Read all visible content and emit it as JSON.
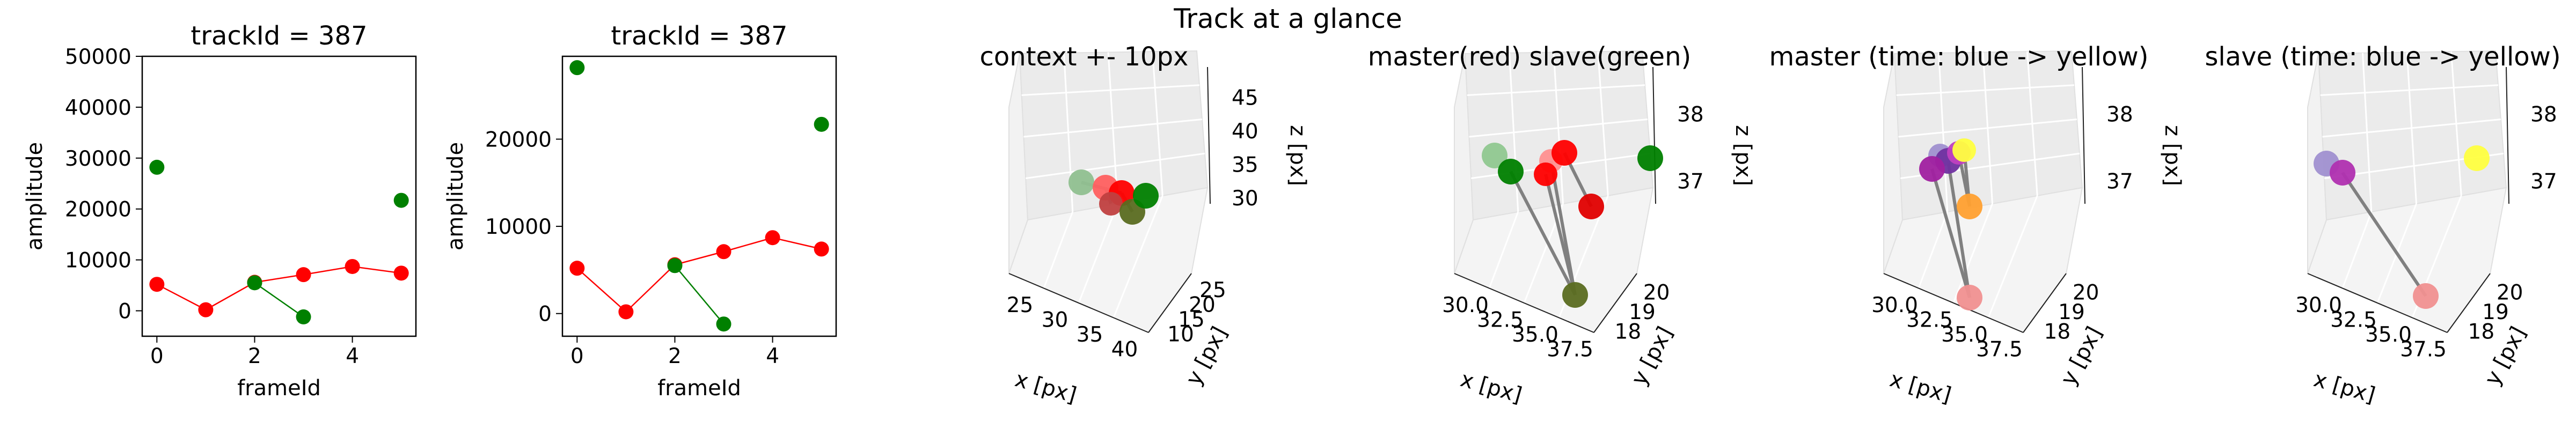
{
  "figure": {
    "suptitle": "Track at a glance"
  },
  "colors": {
    "master": "#ff0000",
    "slave": "#008000",
    "link": "#808080",
    "pane": "#f2f2f2",
    "grid": "#dddddd"
  },
  "chart_data": [
    {
      "type": "line",
      "title": "trackId = 387",
      "xlabel": "frameId",
      "ylabel": "amplitude",
      "xlim": [
        -0.3,
        5.3
      ],
      "ylim": [
        -5000,
        50000
      ],
      "xticks": [
        "0",
        "2",
        "4"
      ],
      "yticks": [
        "0",
        "10000",
        "20000",
        "30000",
        "40000",
        "50000"
      ],
      "series": [
        {
          "color": "#ff0000",
          "x": [
            0,
            1,
            2,
            3,
            4,
            5
          ],
          "y": [
            5200,
            200,
            5600,
            7100,
            8700,
            7400
          ]
        },
        {
          "color": "#008000",
          "x": [
            0,
            2,
            3,
            5
          ],
          "y": [
            28200,
            5500,
            -1200,
            21700
          ],
          "connect": [
            [
              1,
              2
            ]
          ]
        }
      ]
    },
    {
      "type": "line",
      "title": "trackId = 387",
      "xlabel": "frameId",
      "ylabel": "amplitude",
      "xlim": [
        -0.3,
        5.3
      ],
      "ylim": [
        -2600,
        29500
      ],
      "xticks": [
        "0",
        "2",
        "4"
      ],
      "yticks": [
        "0",
        "10000",
        "20000"
      ],
      "series": [
        {
          "color": "#ff0000",
          "x": [
            0,
            1,
            2,
            3,
            4,
            5
          ],
          "y": [
            5200,
            200,
            5600,
            7100,
            8700,
            7400
          ]
        },
        {
          "color": "#008000",
          "x": [
            0,
            2,
            3,
            5
          ],
          "y": [
            28200,
            5500,
            -1200,
            21700
          ],
          "connect": [
            [
              1,
              2
            ]
          ]
        }
      ]
    },
    {
      "type": "scatter3d",
      "title": "context +- 10px",
      "xlabel": "x [px]",
      "ylabel": "y [px]",
      "zlabel": "z [px]",
      "xticks": [
        "25",
        "30",
        "35",
        "40"
      ],
      "yticks": [
        "10",
        "15",
        "20",
        "25"
      ],
      "zticks": [
        "30",
        "35",
        "40",
        "45"
      ]
    },
    {
      "type": "scatter3d",
      "title": "master(red) slave(green)",
      "xlabel": "x [px]",
      "ylabel": "y [px]",
      "zlabel": "z [px]",
      "xticks": [
        "30.0",
        "32.5",
        "35.0",
        "37.5"
      ],
      "yticks": [
        "18",
        "19",
        "20"
      ],
      "zticks": [
        "37",
        "38"
      ]
    },
    {
      "type": "scatter3d",
      "title": "master (time: blue -> yellow)",
      "xlabel": "x [px]",
      "ylabel": "y [px]",
      "zlabel": "z [px]",
      "xticks": [
        "30.0",
        "32.5",
        "35.0",
        "37.5"
      ],
      "yticks": [
        "18",
        "19",
        "20"
      ],
      "zticks": [
        "37",
        "38"
      ]
    },
    {
      "type": "scatter3d",
      "title": "slave (time: blue -> yellow)",
      "xlabel": "x [px]",
      "ylabel": "y [px]",
      "zlabel": "z [px]",
      "xticks": [
        "30.0",
        "32.5",
        "35.0",
        "37.5"
      ],
      "yticks": [
        "18",
        "19",
        "20"
      ],
      "zticks": [
        "37",
        "38"
      ]
    }
  ]
}
